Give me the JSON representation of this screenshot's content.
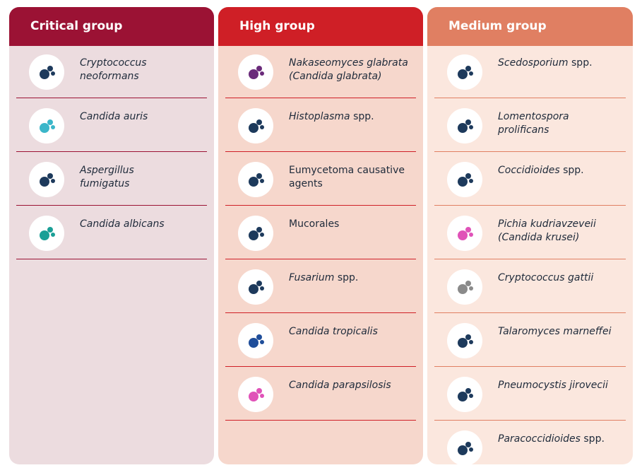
{
  "columns": [
    {
      "title": "Critical group",
      "header_color": "#9b1234",
      "body_color": "#ecdcdf",
      "text_width": 150,
      "items": [
        {
          "name": "Cryptococcus neoformans",
          "italic": true,
          "icon_color": "#1d3a5c"
        },
        {
          "name": "Candida auris",
          "italic": true,
          "icon_color": "#3bb6c9"
        },
        {
          "name": "Aspergillus fumigatus",
          "italic": true,
          "icon_color": "#1d3a5c"
        },
        {
          "name": "Candida albicans",
          "italic": true,
          "icon_color": "#1a9f96"
        }
      ]
    },
    {
      "title": "High group",
      "header_color": "#cf1f26",
      "body_color": "#f6d7cc",
      "text_width": 185,
      "items": [
        {
          "name": "Nakaseomyces glabrata (Candida glabrata)",
          "italic": true,
          "icon_color": "#6a2a7a"
        },
        {
          "name": "Histoplasma",
          "suffix": "spp.",
          "italic": true,
          "icon_color": "#1d3a5c"
        },
        {
          "name": "Eumycetoma causative agents",
          "italic": false,
          "icon_color": "#1d3a5c"
        },
        {
          "name": "Mucorales",
          "italic": false,
          "icon_color": "#1d3a5c"
        },
        {
          "name": "Fusarium",
          "suffix": "spp.",
          "italic": true,
          "icon_color": "#1d3a5c"
        },
        {
          "name": "Candida tropicalis",
          "italic": true,
          "icon_color": "#1f4e9a"
        },
        {
          "name": "Candida parapsilosis",
          "italic": true,
          "icon_color": "#e052b8"
        }
      ]
    },
    {
      "title": "Medium group",
      "header_color": "#e07f62",
      "body_color": "#fbe7de",
      "text_width": 170,
      "items": [
        {
          "name": "Scedosporium",
          "suffix": "spp.",
          "italic": true,
          "icon_color": "#1d3a5c"
        },
        {
          "name": "Lomentospora prolificans",
          "italic": true,
          "icon_color": "#1d3a5c"
        },
        {
          "name": "Coccidioides",
          "suffix": "spp.",
          "italic": true,
          "icon_color": "#1d3a5c"
        },
        {
          "name": "Pichia kudriavzeveii (Candida krusei)",
          "italic": true,
          "icon_color": "#e052b8"
        },
        {
          "name": "Cryptococcus gattii",
          "italic": true,
          "icon_color": "#8a8a8a"
        },
        {
          "name": "Talaromyces marneffei",
          "italic": true,
          "icon_color": "#1d3a5c"
        },
        {
          "name": "Pneumocystis jirovecii",
          "italic": true,
          "icon_color": "#1d3a5c"
        },
        {
          "name": "Paracoccidioides",
          "suffix": "spp.",
          "italic": true,
          "icon_color": "#1d3a5c"
        }
      ]
    }
  ]
}
